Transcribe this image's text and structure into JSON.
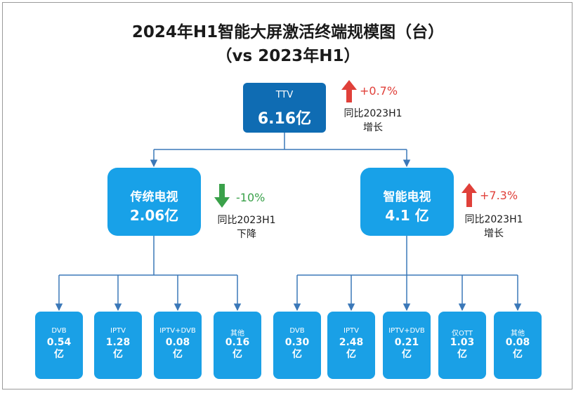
{
  "title_line1": "2024年H1智能大屏激活终端规模图（台）",
  "title_line2": "（vs 2023年H1）",
  "colors": {
    "dark_box": "#0f6cb3",
    "light_box": "#18a1e8",
    "line": "#3b78b8",
    "up": "#e0403a",
    "down": "#3aa14a"
  },
  "root": {
    "label": "TTV",
    "value": "6.16亿"
  },
  "root_change": {
    "pct": "+0.7%",
    "line1": "同比2023H1",
    "line2": "增长",
    "direction_icon": "up-arrow-icon"
  },
  "traditional": {
    "label": "传统电视",
    "value": "2.06亿"
  },
  "traditional_change": {
    "pct": "-10%",
    "line1": "同比2023H1",
    "line2": "下降",
    "direction_icon": "down-arrow-icon"
  },
  "smart": {
    "label": "智能电视",
    "value": "4.1 亿"
  },
  "smart_change": {
    "pct": "+7.3%",
    "line1": "同比2023H1",
    "line2": "增长",
    "direction_icon": "up-arrow-icon"
  },
  "leaves": [
    {
      "label": "DVB",
      "value": "0.54",
      "unit": "亿"
    },
    {
      "label": "IPTV",
      "value": "1.28",
      "unit": "亿"
    },
    {
      "label": "IPTV+DVB",
      "value": "0.08",
      "unit": "亿"
    },
    {
      "label": "其他",
      "value": "0.16",
      "unit": "亿"
    },
    {
      "label": "DVB",
      "value": "0.30",
      "unit": "亿"
    },
    {
      "label": "IPTV",
      "value": "2.48",
      "unit": "亿"
    },
    {
      "label": "IPTV+DVB",
      "value": "0.21",
      "unit": "亿"
    },
    {
      "label": "仅OTT",
      "value": "1.03",
      "unit": "亿"
    },
    {
      "label": "其他",
      "value": "0.08",
      "unit": "亿"
    }
  ]
}
